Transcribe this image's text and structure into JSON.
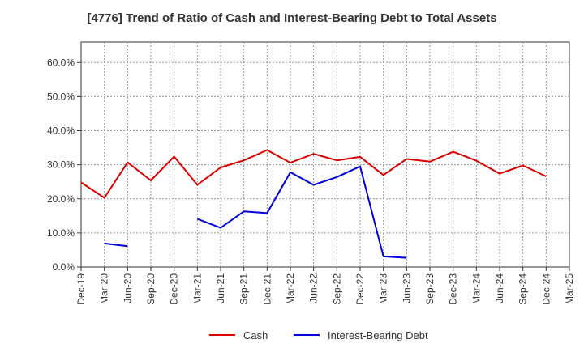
{
  "chart_data": {
    "type": "line",
    "title": "[4776]  Trend of Ratio of Cash and Interest-Bearing Debt to Total Assets",
    "xlabel": "",
    "ylabel": "",
    "x": [
      "Dec-19",
      "Mar-20",
      "Jun-20",
      "Sep-20",
      "Dec-20",
      "Mar-21",
      "Jun-21",
      "Sep-21",
      "Dec-21",
      "Mar-22",
      "Jun-22",
      "Sep-22",
      "Dec-22",
      "Mar-23",
      "Jun-23",
      "Sep-23",
      "Dec-23",
      "Mar-24",
      "Jun-24",
      "Sep-24",
      "Dec-24",
      "Mar-25"
    ],
    "ylim": [
      0,
      66
    ],
    "yticks": [
      0,
      10,
      20,
      30,
      40,
      50,
      60
    ],
    "ytick_labels": [
      "0.0%",
      "10.0%",
      "20.0%",
      "30.0%",
      "40.0%",
      "50.0%",
      "60.0%"
    ],
    "grid": true,
    "legend_position": "bottom",
    "series": [
      {
        "name": "Cash",
        "color": "#dd0000",
        "values": [
          24.8,
          20.3,
          30.7,
          25.4,
          32.4,
          24.1,
          29.2,
          31.3,
          34.3,
          30.6,
          33.2,
          31.3,
          32.3,
          27.0,
          31.7,
          30.9,
          33.8,
          31.2,
          27.4,
          29.8,
          26.6,
          null
        ]
      },
      {
        "name": "Interest-Bearing Debt",
        "color": "#0000dd",
        "values": [
          null,
          6.9,
          6.1,
          null,
          null,
          14.1,
          11.5,
          16.3,
          15.8,
          27.8,
          24.1,
          26.4,
          29.5,
          3.1,
          2.7,
          null,
          null,
          null,
          null,
          null,
          null,
          null
        ]
      }
    ]
  }
}
